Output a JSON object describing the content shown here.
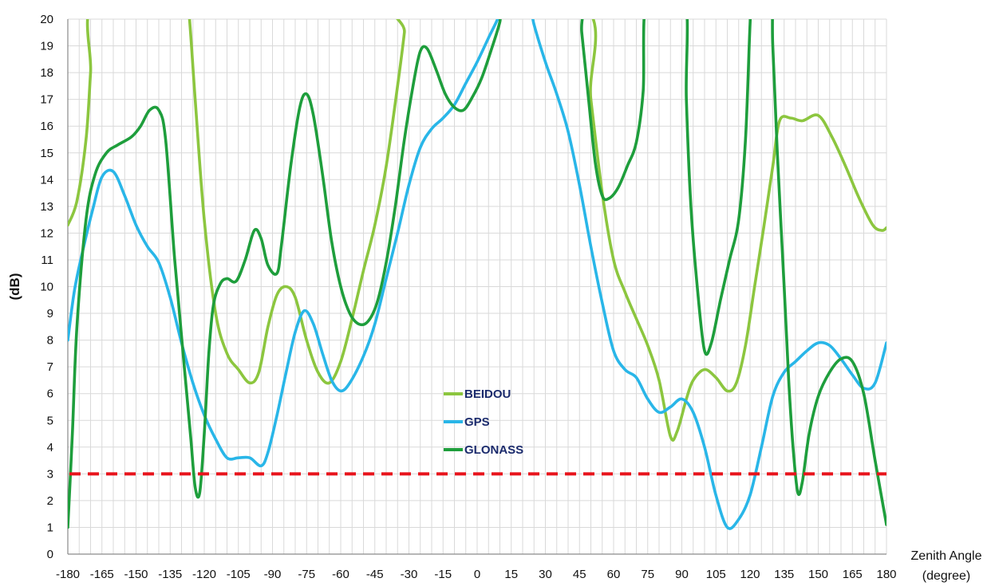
{
  "chart_data": {
    "type": "line",
    "title": "",
    "xlabel_line1": "Zenith Angle",
    "xlabel_line2": "(degree)",
    "ylabel": "(dB)",
    "xlim": [
      -180,
      180
    ],
    "ylim": [
      0,
      20
    ],
    "xticks": [
      -180,
      -165,
      -150,
      -135,
      -120,
      -105,
      -90,
      -75,
      -60,
      -45,
      -30,
      -15,
      0,
      15,
      30,
      45,
      60,
      75,
      90,
      105,
      120,
      135,
      150,
      165,
      180
    ],
    "yticks": [
      0,
      1,
      2,
      3,
      4,
      5,
      6,
      7,
      8,
      9,
      10,
      11,
      12,
      13,
      14,
      15,
      16,
      17,
      18,
      19,
      20
    ],
    "grid": true,
    "legend_position": "center",
    "threshold": {
      "y": 3,
      "color": "#e8141c",
      "style": "dashed"
    },
    "series": [
      {
        "name": "BEIDOU",
        "color": "#8cc63f",
        "points": [
          [
            -180,
            12.3
          ],
          [
            -176,
            13.2
          ],
          [
            -172,
            15.5
          ],
          [
            -170,
            18
          ],
          [
            -168,
            20.8
          ],
          [
            -130,
            22
          ],
          [
            -127,
            20.5
          ],
          [
            -124,
            17
          ],
          [
            -120,
            12.5
          ],
          [
            -115,
            9
          ],
          [
            -110,
            7.5
          ],
          [
            -105,
            6.9
          ],
          [
            -100,
            6.4
          ],
          [
            -96,
            6.8
          ],
          [
            -92,
            8.5
          ],
          [
            -88,
            9.7
          ],
          [
            -84,
            10
          ],
          [
            -80,
            9.6
          ],
          [
            -75,
            8
          ],
          [
            -70,
            6.8
          ],
          [
            -65,
            6.4
          ],
          [
            -60,
            7.2
          ],
          [
            -55,
            8.8
          ],
          [
            -50,
            10.6
          ],
          [
            -45,
            12.3
          ],
          [
            -40,
            14.5
          ],
          [
            -35,
            17.5
          ],
          [
            -32,
            19.5
          ],
          [
            -31,
            20.5
          ],
          [
            45,
            20.6
          ],
          [
            50,
            17
          ],
          [
            55,
            13.5
          ],
          [
            60,
            11
          ],
          [
            65,
            9.8
          ],
          [
            70,
            8.8
          ],
          [
            75,
            7.8
          ],
          [
            80,
            6.5
          ],
          [
            85,
            4.4
          ],
          [
            88,
            4.6
          ],
          [
            92,
            5.8
          ],
          [
            95,
            6.5
          ],
          [
            100,
            6.9
          ],
          [
            105,
            6.6
          ],
          [
            110,
            6.1
          ],
          [
            114,
            6.4
          ],
          [
            118,
            7.8
          ],
          [
            122,
            10
          ],
          [
            126,
            12.2
          ],
          [
            130,
            14.5
          ],
          [
            133,
            16.2
          ],
          [
            138,
            16.3
          ],
          [
            143,
            16.2
          ],
          [
            150,
            16.4
          ],
          [
            156,
            15.6
          ],
          [
            162,
            14.5
          ],
          [
            168,
            13.3
          ],
          [
            174,
            12.3
          ],
          [
            178,
            12.1
          ],
          [
            180,
            12.2
          ]
        ]
      },
      {
        "name": "GPS",
        "color": "#29b6e8",
        "points": [
          [
            -180,
            8
          ],
          [
            -177,
            9.9
          ],
          [
            -173,
            11.5
          ],
          [
            -169,
            12.9
          ],
          [
            -165,
            14.1
          ],
          [
            -160,
            14.3
          ],
          [
            -155,
            13.4
          ],
          [
            -150,
            12.3
          ],
          [
            -145,
            11.5
          ],
          [
            -140,
            10.9
          ],
          [
            -135,
            9.6
          ],
          [
            -130,
            7.9
          ],
          [
            -125,
            6.4
          ],
          [
            -120,
            5.2
          ],
          [
            -115,
            4.3
          ],
          [
            -110,
            3.6
          ],
          [
            -105,
            3.6
          ],
          [
            -100,
            3.6
          ],
          [
            -95,
            3.3
          ],
          [
            -92,
            3.8
          ],
          [
            -88,
            5.2
          ],
          [
            -84,
            6.8
          ],
          [
            -80,
            8.3
          ],
          [
            -76,
            9.1
          ],
          [
            -72,
            8.6
          ],
          [
            -68,
            7.5
          ],
          [
            -64,
            6.5
          ],
          [
            -60,
            6.1
          ],
          [
            -56,
            6.4
          ],
          [
            -50,
            7.4
          ],
          [
            -45,
            8.6
          ],
          [
            -40,
            10.3
          ],
          [
            -35,
            12
          ],
          [
            -30,
            13.8
          ],
          [
            -25,
            15.2
          ],
          [
            -20,
            15.9
          ],
          [
            -15,
            16.3
          ],
          [
            -10,
            16.8
          ],
          [
            -5,
            17.6
          ],
          [
            0,
            18.4
          ],
          [
            5,
            19.3
          ],
          [
            10,
            20.2
          ],
          [
            12,
            20.9
          ],
          [
            22,
            20.9
          ],
          [
            25,
            19.8
          ],
          [
            30,
            18.4
          ],
          [
            35,
            17.2
          ],
          [
            40,
            15.8
          ],
          [
            45,
            13.8
          ],
          [
            50,
            11.5
          ],
          [
            55,
            9.4
          ],
          [
            60,
            7.6
          ],
          [
            65,
            6.9
          ],
          [
            70,
            6.6
          ],
          [
            75,
            5.8
          ],
          [
            80,
            5.3
          ],
          [
            85,
            5.5
          ],
          [
            90,
            5.8
          ],
          [
            95,
            5.3
          ],
          [
            100,
            4
          ],
          [
            105,
            2.2
          ],
          [
            110,
            1
          ],
          [
            115,
            1.3
          ],
          [
            120,
            2.2
          ],
          [
            125,
            4
          ],
          [
            130,
            5.9
          ],
          [
            135,
            6.8
          ],
          [
            140,
            7.2
          ],
          [
            145,
            7.6
          ],
          [
            150,
            7.9
          ],
          [
            155,
            7.8
          ],
          [
            160,
            7.3
          ],
          [
            165,
            6.7
          ],
          [
            170,
            6.2
          ],
          [
            175,
            6.4
          ],
          [
            180,
            7.9
          ]
        ]
      },
      {
        "name": "GLONASS",
        "color": "#1e9e3c",
        "points": [
          [
            -180,
            1
          ],
          [
            -178,
            4.5
          ],
          [
            -176,
            8.5
          ],
          [
            -172,
            12.5
          ],
          [
            -168,
            14.2
          ],
          [
            -163,
            15
          ],
          [
            -158,
            15.3
          ],
          [
            -152,
            15.6
          ],
          [
            -148,
            16
          ],
          [
            -144,
            16.6
          ],
          [
            -140,
            16.6
          ],
          [
            -137,
            15.5
          ],
          [
            -133,
            11
          ],
          [
            -129,
            7.2
          ],
          [
            -126,
            4.4
          ],
          [
            -124,
            2.5
          ],
          [
            -122,
            2.3
          ],
          [
            -120,
            4.5
          ],
          [
            -118,
            7.5
          ],
          [
            -116,
            9.3
          ],
          [
            -113,
            10.1
          ],
          [
            -110,
            10.3
          ],
          [
            -106,
            10.2
          ],
          [
            -102,
            11
          ],
          [
            -98,
            12.1
          ],
          [
            -95,
            11.8
          ],
          [
            -92,
            10.8
          ],
          [
            -88,
            10.5
          ],
          [
            -86,
            11.6
          ],
          [
            -82,
            14.5
          ],
          [
            -78,
            16.7
          ],
          [
            -75,
            17.2
          ],
          [
            -72,
            16.4
          ],
          [
            -68,
            14.2
          ],
          [
            -64,
            11.7
          ],
          [
            -60,
            10
          ],
          [
            -56,
            9
          ],
          [
            -52,
            8.6
          ],
          [
            -48,
            8.7
          ],
          [
            -44,
            9.4
          ],
          [
            -40,
            10.9
          ],
          [
            -36,
            13
          ],
          [
            -32,
            15.5
          ],
          [
            -28,
            17.6
          ],
          [
            -25,
            18.8
          ],
          [
            -22,
            18.9
          ],
          [
            -18,
            18.1
          ],
          [
            -14,
            17.2
          ],
          [
            -10,
            16.7
          ],
          [
            -6,
            16.6
          ],
          [
            -2,
            17.1
          ],
          [
            2,
            17.8
          ],
          [
            6,
            18.8
          ],
          [
            10,
            19.9
          ],
          [
            12,
            20.9
          ],
          [
            44,
            20.9
          ],
          [
            46,
            19.5
          ],
          [
            49,
            17
          ],
          [
            52,
            14.6
          ],
          [
            55,
            13.4
          ],
          [
            58,
            13.3
          ],
          [
            62,
            13.7
          ],
          [
            66,
            14.5
          ],
          [
            70,
            15.4
          ],
          [
            73,
            17.3
          ],
          [
            75,
            20.9
          ],
          [
            91,
            20.9
          ],
          [
            92,
            17
          ],
          [
            94,
            13
          ],
          [
            97,
            9.8
          ],
          [
            100,
            7.6
          ],
          [
            103,
            7.9
          ],
          [
            107,
            9.5
          ],
          [
            111,
            11
          ],
          [
            115,
            12.5
          ],
          [
            118,
            15.5
          ],
          [
            120,
            19.8
          ],
          [
            121,
            20.9
          ],
          [
            129,
            20.9
          ],
          [
            130,
            19
          ],
          [
            132,
            15
          ],
          [
            135,
            10
          ],
          [
            137,
            6.5
          ],
          [
            139,
            3.9
          ],
          [
            141,
            2.3
          ],
          [
            143,
            2.7
          ],
          [
            146,
            4.5
          ],
          [
            150,
            5.9
          ],
          [
            155,
            6.8
          ],
          [
            160,
            7.3
          ],
          [
            165,
            7.2
          ],
          [
            170,
            6
          ],
          [
            175,
            3.5
          ],
          [
            180,
            1.1
          ]
        ]
      }
    ]
  }
}
